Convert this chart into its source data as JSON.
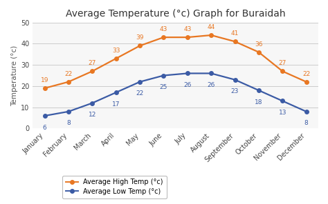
{
  "title": "Average Temperature (°c) Graph for Buraidah",
  "months": [
    "January",
    "February",
    "March",
    "April",
    "May",
    "June",
    "July",
    "August",
    "September",
    "October",
    "November",
    "December"
  ],
  "high_temps": [
    19,
    22,
    27,
    33,
    39,
    43,
    43,
    44,
    41,
    36,
    27,
    22
  ],
  "low_temps": [
    6,
    8,
    12,
    17,
    22,
    25,
    26,
    26,
    23,
    18,
    13,
    8
  ],
  "high_color": "#E87722",
  "low_color": "#3B5BA5",
  "ylabel": "Temperature (°c)",
  "ylim": [
    0,
    50
  ],
  "yticks": [
    0,
    10,
    20,
    30,
    40,
    50
  ],
  "legend_high": "Average High Temp (°c)",
  "legend_low": "Average Low Temp (°c)",
  "bg_color": "#ffffff",
  "plot_bg": "#f7f7f7",
  "grid_color": "#cccccc",
  "title_fontsize": 10,
  "label_fontsize": 7.5,
  "tick_fontsize": 7,
  "annot_fontsize": 6.5
}
